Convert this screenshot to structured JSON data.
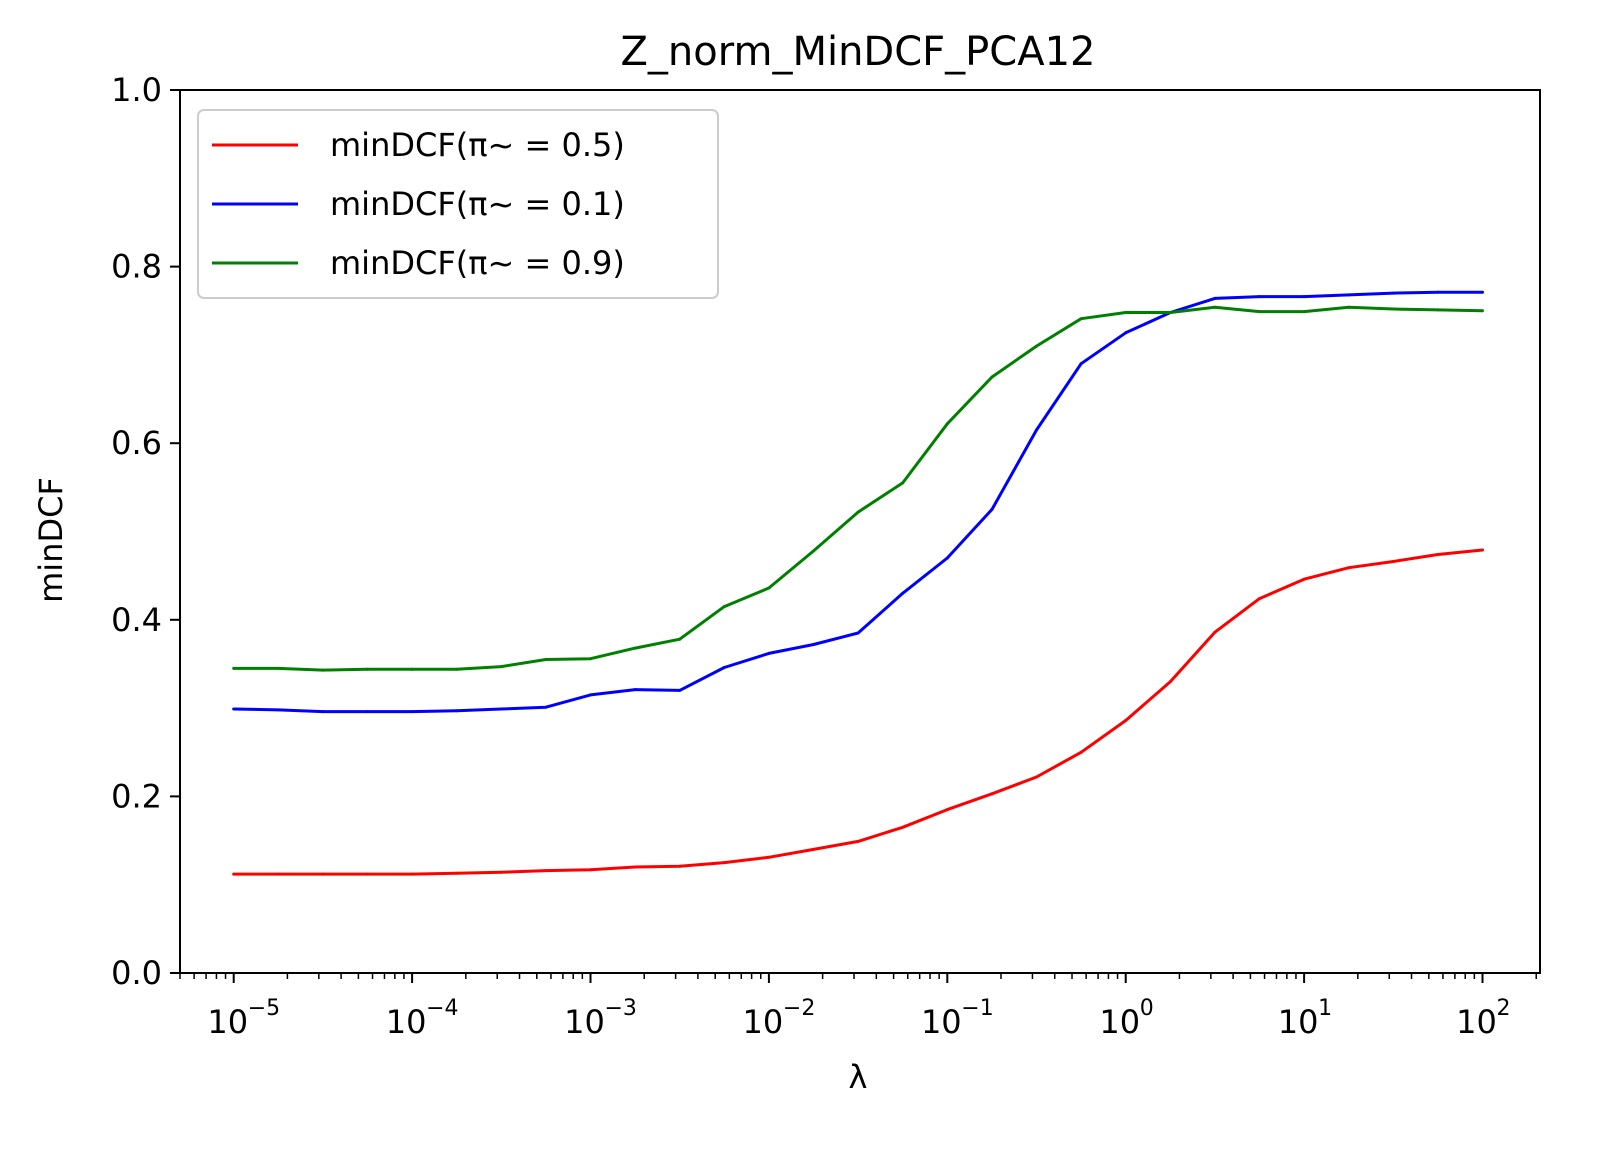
{
  "chart_data": {
    "type": "line",
    "title": "Z_norm_MinDCF_PCA12",
    "xlabel": "λ",
    "ylabel": "minDCF",
    "xscale": "log",
    "xlim": [
      5e-06,
      210
    ],
    "ylim": [
      0.0,
      1.0
    ],
    "grid": false,
    "legend_position": "top-left",
    "yticks": [
      "0.0",
      "0.2",
      "0.4",
      "0.6",
      "0.8",
      "1.0"
    ],
    "xticks": [
      {
        "base": "10",
        "exp": "−5"
      },
      {
        "base": "10",
        "exp": "−4"
      },
      {
        "base": "10",
        "exp": "−3"
      },
      {
        "base": "10",
        "exp": "−2"
      },
      {
        "base": "10",
        "exp": "−1"
      },
      {
        "base": "10",
        "exp": "0"
      },
      {
        "base": "10",
        "exp": "1"
      },
      {
        "base": "10",
        "exp": "2"
      }
    ],
    "x": [
      1e-05,
      1.78e-05,
      3.16e-05,
      5.62e-05,
      0.0001,
      0.000178,
      0.000316,
      0.000562,
      0.001,
      0.00178,
      0.00316,
      0.00562,
      0.01,
      0.0178,
      0.0316,
      0.0562,
      0.1,
      0.178,
      0.316,
      0.562,
      1,
      1.78,
      3.16,
      5.62,
      10,
      17.8,
      31.6,
      56.2,
      100
    ],
    "series": [
      {
        "name": "minDCF(π~ = 0.5)",
        "color": "#ff0000",
        "values": [
          0.112,
          0.112,
          0.112,
          0.112,
          0.112,
          0.113,
          0.114,
          0.116,
          0.117,
          0.12,
          0.121,
          0.125,
          0.131,
          0.14,
          0.149,
          0.165,
          0.185,
          0.203,
          0.222,
          0.25,
          0.286,
          0.33,
          0.386,
          0.424,
          0.446,
          0.459,
          0.466,
          0.474,
          0.479
        ]
      },
      {
        "name": "minDCF(π~ = 0.1)",
        "color": "#0000ff",
        "values": [
          0.299,
          0.298,
          0.296,
          0.296,
          0.296,
          0.297,
          0.299,
          0.301,
          0.315,
          0.321,
          0.32,
          0.346,
          0.362,
          0.372,
          0.385,
          0.43,
          0.47,
          0.525,
          0.615,
          0.69,
          0.725,
          0.748,
          0.764,
          0.766,
          0.766,
          0.768,
          0.77,
          0.771,
          0.771
        ]
      },
      {
        "name": "minDCF(π~ = 0.9)",
        "color": "#008000",
        "values": [
          0.345,
          0.345,
          0.343,
          0.344,
          0.344,
          0.344,
          0.347,
          0.355,
          0.356,
          0.368,
          0.378,
          0.415,
          0.436,
          0.478,
          0.522,
          0.555,
          0.622,
          0.675,
          0.71,
          0.741,
          0.748,
          0.748,
          0.754,
          0.749,
          0.749,
          0.754,
          0.752,
          0.751,
          0.75
        ]
      }
    ]
  }
}
